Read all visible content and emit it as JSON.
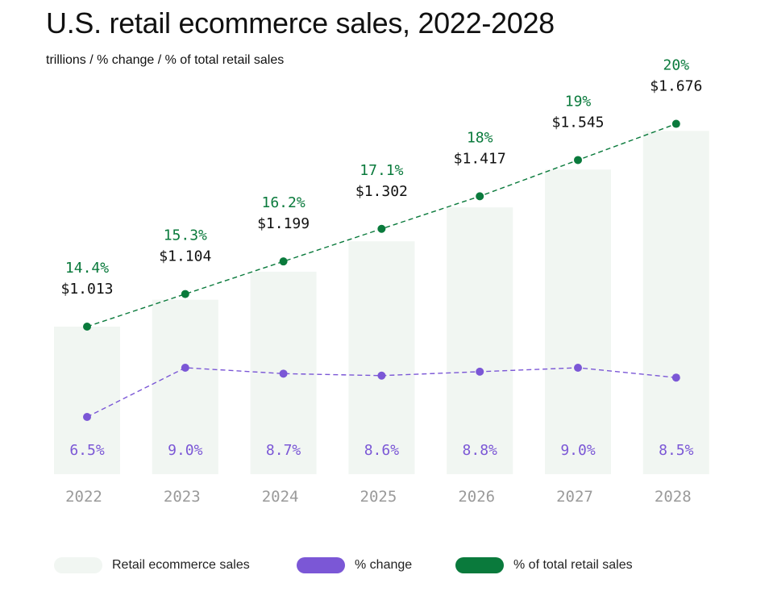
{
  "title": "U.S. retail ecommerce sales, 2022-2028",
  "subtitle": "trillions / % change / % of total retail sales",
  "colors": {
    "bar": "#f1f6f2",
    "pct_change": "#7b57d6",
    "pct_total": "#0a7a3c",
    "axis_text": "#9a9a9a"
  },
  "legend": {
    "bars": "Retail ecommerce sales",
    "change": "% change",
    "total": "% of total retail sales"
  },
  "chart_data": {
    "type": "bar",
    "title": "U.S. retail ecommerce sales, 2022-2028",
    "subtitle": "trillions / % change / % of total retail sales",
    "categories": [
      "2022",
      "2023",
      "2024",
      "2025",
      "2026",
      "2027",
      "2028"
    ],
    "series": [
      {
        "name": "Retail ecommerce sales",
        "type": "bar",
        "values": [
          1.013,
          1.104,
          1.199,
          1.302,
          1.417,
          1.545,
          1.676
        ],
        "labels": [
          "$1.013",
          "$1.104",
          "$1.199",
          "$1.302",
          "$1.417",
          "$1.545",
          "$1.676"
        ]
      },
      {
        "name": "% change",
        "type": "line",
        "values": [
          6.5,
          9.0,
          8.7,
          8.6,
          8.8,
          9.0,
          8.5
        ],
        "labels": [
          "6.5%",
          "9.0%",
          "8.7%",
          "8.6%",
          "8.8%",
          "9.0%",
          "8.5%"
        ]
      },
      {
        "name": "% of total retail sales",
        "type": "line",
        "values": [
          14.4,
          15.3,
          16.2,
          17.1,
          18.0,
          19.0,
          20.0
        ],
        "labels": [
          "14.4%",
          "15.3%",
          "16.2%",
          "17.1%",
          "18%",
          "19%",
          "20%"
        ]
      }
    ],
    "grid": false,
    "legend_position": "bottom"
  }
}
